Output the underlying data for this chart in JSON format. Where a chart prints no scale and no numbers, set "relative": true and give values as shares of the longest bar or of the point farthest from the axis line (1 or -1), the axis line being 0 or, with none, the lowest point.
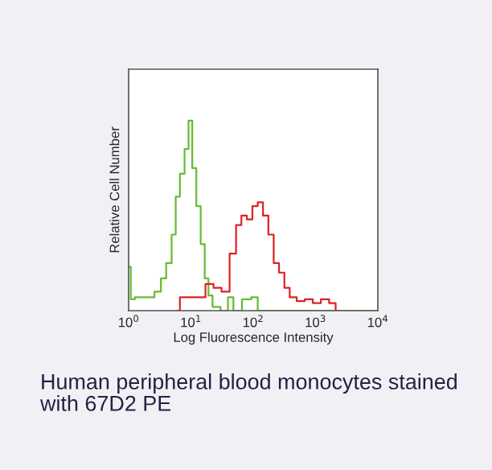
{
  "chart_data": {
    "type": "step",
    "relative": true,
    "log": "x",
    "grid": false,
    "xlabel": "Log Fluorescence Intensity",
    "ylabel": "Relative Cell Number",
    "xlim": [
      1,
      10000
    ],
    "xticks": [
      {
        "value": 1,
        "label": "10$^{0}$"
      },
      {
        "value": 10,
        "label": "10$^{1}$"
      },
      {
        "value": 100,
        "label": "10$^{2}$"
      },
      {
        "value": 1000,
        "label": "10$^{3}$"
      },
      {
        "value": 10000,
        "label": "10$^{4}$"
      }
    ],
    "annotations": [
      "Human peripheral blood monocytes stained with 67D2 PE"
    ],
    "series": [
      {
        "color": "#66bb33",
        "x": [
          1,
          1.17,
          1.35,
          2.2,
          3.0,
          3.6,
          4.4,
          5.4,
          6.0,
          7.3,
          8.5,
          9.8,
          11.2,
          13.2,
          15.5,
          17.8,
          20.4,
          24,
          35.5,
          43,
          53,
          79,
          107,
          129,
          10000
        ],
        "values": [
          0.23,
          0.06,
          0.07,
          0.07,
          0.1,
          0.17,
          0.25,
          0.4,
          0.6,
          0.72,
          0.85,
          1.0,
          0.75,
          0.55,
          0.35,
          0.17,
          0.08,
          0.02,
          0.0,
          0.07,
          0.0,
          0.06,
          0.07,
          0.0,
          0.0
        ]
      },
      {
        "color": "#dd2222",
        "x": [
          6.0,
          7.3,
          9.8,
          14.6,
          19.6,
          26.5,
          35.5,
          48,
          58,
          71,
          87,
          107,
          129,
          158,
          192,
          234,
          285,
          347,
          423,
          575,
          770,
          1040,
          1400,
          1900,
          2300
        ],
        "values": [
          0.0,
          0.07,
          0.07,
          0.07,
          0.14,
          0.12,
          0.1,
          0.3,
          0.45,
          0.5,
          0.48,
          0.55,
          0.57,
          0.5,
          0.4,
          0.25,
          0.2,
          0.12,
          0.07,
          0.05,
          0.06,
          0.04,
          0.06,
          0.04,
          0.0
        ]
      }
    ]
  }
}
